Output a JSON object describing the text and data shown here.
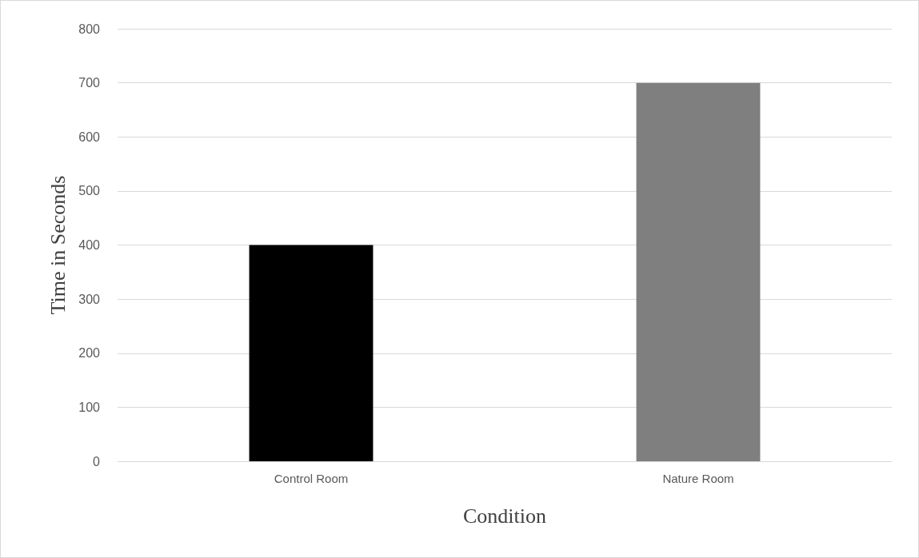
{
  "chart_data": {
    "type": "bar",
    "xlabel": "Condition",
    "ylabel": "Time in Seconds",
    "categories": [
      "Control Room",
      "Nature Room"
    ],
    "values": [
      400,
      700
    ],
    "colors": [
      "#000000",
      "#7f7f7f"
    ],
    "ylim": [
      0,
      800
    ],
    "yticks": [
      0,
      100,
      200,
      300,
      400,
      500,
      600,
      700,
      800
    ],
    "grid": "y"
  }
}
